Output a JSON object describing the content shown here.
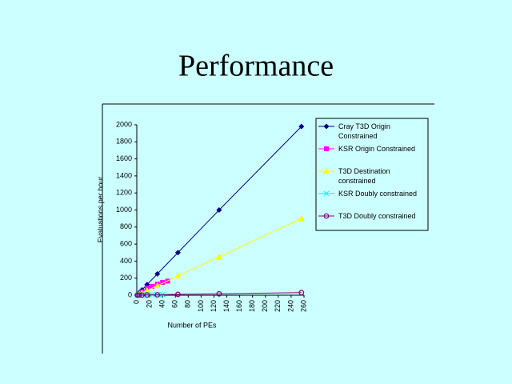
{
  "chart_data": {
    "type": "line",
    "title": "Performance",
    "xlabel": "Number of PEs",
    "ylabel": "Evaluations per hour",
    "xlim": [
      0,
      260
    ],
    "xticks": [
      0,
      20,
      40,
      60,
      80,
      100,
      120,
      140,
      160,
      180,
      200,
      220,
      240,
      260
    ],
    "ylim": [
      0,
      2000
    ],
    "yticks": [
      0,
      200,
      400,
      600,
      800,
      1000,
      1200,
      1400,
      1600,
      1800,
      2000
    ],
    "legend": "right",
    "series": [
      {
        "name": "Cray T3D Origin Constrained",
        "color": "#000080",
        "marker": "diamond",
        "x": [
          1,
          2,
          4,
          8,
          16,
          32,
          64,
          128,
          256
        ],
        "values": [
          8,
          16,
          31,
          62,
          125,
          250,
          500,
          1000,
          1980
        ]
      },
      {
        "name": "KSR Origin Constrained",
        "color": "#ff00ff",
        "marker": "square",
        "x": [
          8,
          16,
          24,
          32,
          40,
          48
        ],
        "values": [
          40,
          85,
          105,
          130,
          150,
          165
        ]
      },
      {
        "name": "T3D Destination constrained",
        "color": "#ffff00",
        "marker": "triangle",
        "x": [
          1,
          2,
          4,
          8,
          16,
          32,
          64,
          128,
          256
        ],
        "values": [
          3,
          7,
          14,
          28,
          56,
          112,
          225,
          450,
          900
        ]
      },
      {
        "name": "KSR Doubly constrained",
        "color": "#00ffff",
        "marker": "x",
        "x": [
          1,
          2,
          4,
          8,
          16,
          24,
          32,
          40
        ],
        "values": [
          1,
          2,
          3,
          4,
          5,
          6,
          7,
          8
        ]
      },
      {
        "name": "T3D Doubly constrained",
        "color": "#800080",
        "marker": "circle",
        "x": [
          1,
          2,
          4,
          8,
          16,
          32,
          64,
          128,
          256
        ],
        "values": [
          0.5,
          1,
          1.5,
          2,
          3,
          5,
          10,
          16,
          30
        ]
      }
    ]
  }
}
